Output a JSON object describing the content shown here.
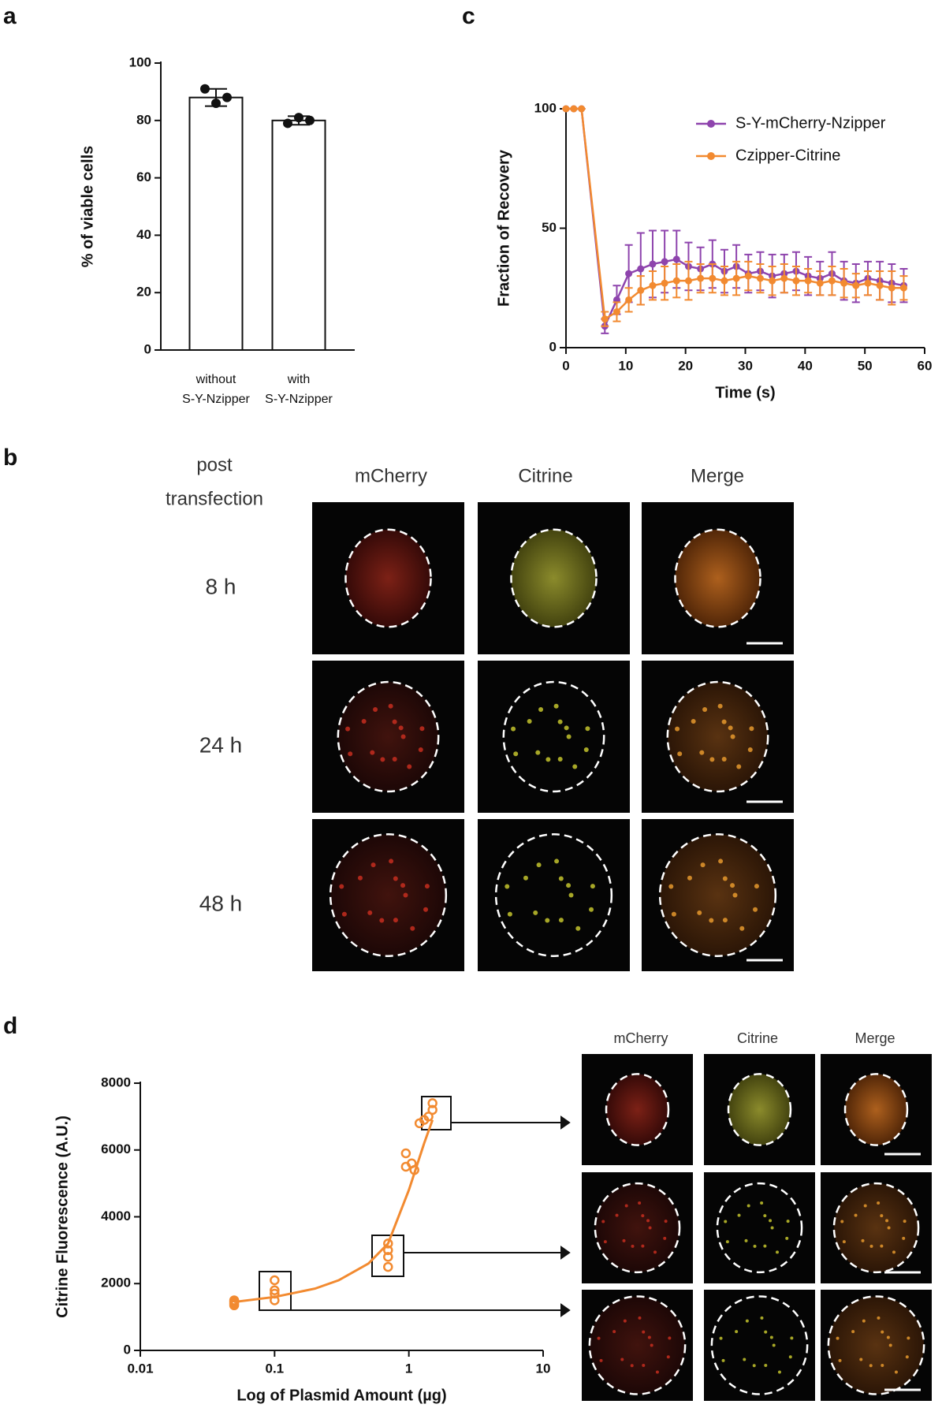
{
  "chart_data": [
    {
      "type": "bar",
      "panel": "a",
      "ylabel": "% of viable cells",
      "categories": [
        "without S-Y-Nzipper",
        "with S-Y-Nzipper"
      ],
      "values": [
        88,
        80
      ],
      "errors": [
        3,
        1.5
      ],
      "points": [
        [
          91,
          86,
          88
        ],
        [
          79,
          81,
          80
        ]
      ],
      "color": "#ffffff",
      "ylim": [
        0,
        100
      ],
      "yticks": [
        0,
        20,
        40,
        60,
        80,
        100
      ]
    },
    {
      "type": "line",
      "panel": "c",
      "ylabel": "Fraction of Recovery",
      "xlabel": "Time (s)",
      "legend": "top-right",
      "x": [
        0,
        1.3,
        2.6,
        6.5,
        8.5,
        10.5,
        12.5,
        14.5,
        16.5,
        18.5,
        20.5,
        22.5,
        24.5,
        26.5,
        28.5,
        30.5,
        32.5,
        34.5,
        36.5,
        38.5,
        40.5,
        42.5,
        44.5,
        46.5,
        48.5,
        50.5,
        52.5,
        54.5,
        56.5
      ],
      "series": [
        {
          "name": "S-Y-mCherry-Nzipper",
          "color": "#8e44ad",
          "values": [
            100,
            100,
            100,
            9,
            20,
            31,
            33,
            35,
            36,
            37,
            34,
            33,
            35,
            32,
            34,
            31,
            32,
            30,
            31,
            32,
            30,
            29,
            31,
            28,
            27,
            29,
            28,
            27,
            26
          ],
          "errors": [
            0,
            0,
            0,
            3,
            6,
            12,
            15,
            14,
            13,
            12,
            10,
            9,
            10,
            9,
            9,
            8,
            8,
            9,
            8,
            8,
            8,
            7,
            9,
            8,
            8,
            7,
            8,
            8,
            7
          ]
        },
        {
          "name": "Czipper-Citrine",
          "color": "#f28a30",
          "values": [
            100,
            100,
            100,
            12,
            15,
            20,
            24,
            26,
            27,
            28,
            28,
            29,
            29,
            28,
            29,
            30,
            29,
            28,
            29,
            28,
            28,
            27,
            28,
            27,
            26,
            27,
            26,
            25,
            25
          ],
          "errors": [
            0,
            0,
            0,
            3,
            4,
            5,
            6,
            6,
            7,
            7,
            8,
            6,
            6,
            6,
            7,
            6,
            6,
            6,
            6,
            6,
            5,
            5,
            6,
            6,
            5,
            5,
            6,
            7,
            5
          ]
        }
      ],
      "xlim": [
        0,
        60
      ],
      "xticks": [
        0,
        10,
        20,
        30,
        40,
        50,
        60
      ],
      "ylim": [
        0,
        100
      ],
      "yticks": [
        0,
        50,
        100
      ]
    },
    {
      "type": "scatter",
      "panel": "d",
      "ylabel": "Citrine Fluorescence (A.U.)",
      "xlabel": "Log of Plasmid Amount (µg)",
      "log_x": true,
      "color": "#f28a30",
      "x": [
        0.05,
        0.05,
        0.05,
        0.05,
        0.1,
        0.1,
        0.1,
        0.1,
        0.7,
        0.7,
        0.7,
        0.7,
        0.95,
        1.05,
        0.95,
        1.1,
        1.2,
        1.3,
        1.4,
        1.5,
        1.5
      ],
      "y": [
        1350,
        1450,
        1500,
        1400,
        1500,
        1700,
        1800,
        2100,
        2500,
        2800,
        3000,
        3200,
        5500,
        5600,
        5900,
        5400,
        6800,
        6900,
        7000,
        7200,
        7400
      ],
      "fit": {
        "x": [
          0.05,
          0.1,
          0.2,
          0.3,
          0.5,
          0.7,
          1,
          1.3,
          1.5
        ],
        "y": [
          1450,
          1600,
          1850,
          2100,
          2600,
          3200,
          4800,
          6200,
          6900
        ]
      },
      "xlim": [
        0.01,
        10
      ],
      "xticks": [
        0.01,
        0.1,
        1,
        10
      ],
      "ylim": [
        0,
        8000
      ],
      "yticks": [
        0,
        2000,
        4000,
        6000,
        8000
      ]
    }
  ],
  "panel_b": {
    "panel": "b",
    "header_lines": [
      "post",
      "transfection"
    ],
    "columns": [
      "mCherry",
      "Citrine",
      "Merge"
    ],
    "rows": [
      "8 h",
      "24 h",
      "48 h"
    ]
  },
  "panel_d_images": {
    "columns": [
      "mCherry",
      "Citrine",
      "Merge"
    ]
  }
}
